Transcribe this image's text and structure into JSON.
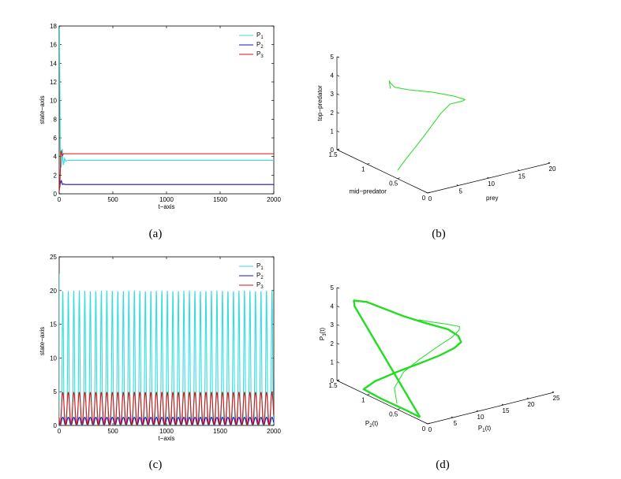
{
  "captions": {
    "a": "(a)",
    "b": "(b)",
    "c": "(c)",
    "d": "(d)"
  },
  "colors": {
    "cyan": "#33dddd",
    "blue": "#1010cc",
    "red": "#dd1111",
    "green": "#22dd22"
  },
  "chart_data": [
    {
      "id": "a",
      "type": "line",
      "xlabel": "t−axis",
      "ylabel": "state−axis",
      "xlim": [
        0,
        2000
      ],
      "ylim": [
        0,
        18
      ],
      "xticks": [
        0,
        500,
        1000,
        1500,
        2000
      ],
      "yticks": [
        0,
        2,
        4,
        6,
        8,
        10,
        12,
        14,
        16,
        18
      ],
      "legend": "top-right",
      "series": [
        {
          "name": "P1",
          "label": "P",
          "sub": "1",
          "color": "cyan",
          "x": [
            0,
            3,
            6,
            10,
            14,
            18,
            22,
            26,
            30,
            35,
            40,
            50,
            60,
            80,
            2000
          ],
          "y": [
            17.8,
            17.8,
            12.0,
            5.0,
            3.0,
            2.8,
            3.2,
            4.5,
            4.8,
            3.6,
            3.1,
            3.8,
            3.5,
            3.6,
            3.6
          ]
        },
        {
          "name": "P2",
          "label": "P",
          "sub": "2",
          "color": "blue",
          "x": [
            0,
            5,
            10,
            15,
            20,
            25,
            30,
            40,
            60,
            2000
          ],
          "y": [
            0.4,
            0.7,
            1.1,
            1.3,
            1.4,
            1.2,
            1.0,
            1.05,
            1.0,
            1.0
          ]
        },
        {
          "name": "P3",
          "label": "P",
          "sub": "3",
          "color": "red",
          "x": [
            0,
            5,
            10,
            15,
            20,
            25,
            30,
            40,
            60,
            2000
          ],
          "y": [
            0.2,
            0.8,
            2.2,
            4.5,
            4.6,
            4.2,
            4.1,
            4.3,
            4.3,
            4.3
          ]
        }
      ]
    },
    {
      "id": "b",
      "type": "line3d",
      "xlabel": "prey",
      "ylabel": "mid−predator",
      "zlabel": "top−predator",
      "xlim": [
        0,
        20
      ],
      "ylim": [
        0,
        1.5
      ],
      "zlim": [
        0,
        5
      ],
      "xticks": [
        0,
        5,
        10,
        15,
        20
      ],
      "yticks": [
        0,
        0.5,
        1,
        1.5
      ],
      "zticks": [
        0,
        1,
        2,
        3,
        4,
        5
      ],
      "series": [
        {
          "color": "green",
          "x": [
            1,
            4,
            8,
            12,
            15,
            17.5,
            18,
            17,
            14.5,
            11,
            7,
            4.6,
            3.8,
            3.6,
            3.7,
            3.8
          ],
          "y": [
            0.6,
            0.75,
            0.95,
            1.15,
            1.3,
            1.4,
            1.25,
            1.1,
            1.02,
            1.02,
            1.02,
            1.01,
            1.0,
            1.0,
            1.0,
            1.0
          ],
          "z": [
            0.2,
            0.4,
            0.6,
            0.85,
            1.05,
            1.2,
            1.55,
            1.95,
            2.45,
            2.95,
            3.4,
            3.75,
            4.05,
            4.2,
            3.95,
            3.75
          ]
        }
      ]
    },
    {
      "id": "c",
      "type": "line",
      "xlabel": "t−axis",
      "ylabel": "state−axis",
      "xlim": [
        0,
        2000
      ],
      "ylim": [
        0,
        25
      ],
      "xticks": [
        0,
        500,
        1000,
        1500,
        2000
      ],
      "yticks": [
        0,
        5,
        10,
        15,
        20,
        25
      ],
      "legend": "top-right",
      "period": 51.3,
      "cycles": 39,
      "series": [
        {
          "name": "P1",
          "label": "P",
          "sub": "1",
          "color": "cyan",
          "initial": 22.5,
          "min": 0.1,
          "max": 20.0
        },
        {
          "name": "P2",
          "label": "P",
          "sub": "2",
          "color": "blue",
          "min": 0.1,
          "max": 1.2
        },
        {
          "name": "P3",
          "label": "P",
          "sub": "3",
          "color": "red",
          "min": 0.1,
          "max": 4.9
        }
      ]
    },
    {
      "id": "d",
      "type": "line3d",
      "xlabel": "P1(t)",
      "ylabel": "P2(t)",
      "zlabel": "P3(t)",
      "xlabel_main": "P",
      "xlabel_sub": "1",
      "xlabel_tail": "(t)",
      "ylabel_main": "P",
      "ylabel_sub": "2",
      "ylabel_tail": "(t)",
      "zlabel_main": "P",
      "zlabel_sub": "3",
      "zlabel_tail": "(t)",
      "xlim": [
        0,
        25
      ],
      "ylim": [
        0,
        1.5
      ],
      "zlim": [
        0,
        5
      ],
      "xticks": [
        0,
        5,
        10,
        15,
        20,
        25
      ],
      "yticks": [
        0,
        0.5,
        1,
        1.5
      ],
      "zticks": [
        0,
        1,
        2,
        3,
        4,
        5
      ],
      "series": [
        {
          "color": "green",
          "role": "transient",
          "x": [
            0.5,
            3,
            7,
            11,
            15,
            18.5,
            20,
            19.5,
            17,
            14,
            12
          ],
          "y": [
            0.55,
            0.8,
            0.98,
            1.05,
            1.1,
            1.15,
            1.15,
            1.1,
            1.1,
            1.12,
            1.15
          ],
          "z": [
            0.2,
            0.5,
            0.8,
            1.1,
            1.4,
            1.6,
            1.9,
            2.2,
            2.5,
            2.8,
            3.0
          ]
        },
        {
          "color": "green",
          "role": "limit-cycle",
          "x": [
            0.3,
            0.4,
            0.3,
            0.5,
            3,
            7,
            11,
            14.5,
            17,
            18,
            17.8,
            16.5,
            13,
            9.5,
            6.5,
            3.5,
            1.2,
            0.5,
            0.3
          ],
          "y": [
            0.15,
            0.4,
            0.8,
            1.1,
            1.12,
            1.1,
            1.06,
            1.02,
            0.98,
            0.95,
            0.98,
            1.04,
            1.12,
            1.18,
            1.24,
            1.3,
            1.32,
            1.25,
            0.15
          ],
          "z": [
            0.1,
            0.1,
            0.1,
            0.12,
            0.35,
            0.6,
            0.85,
            1.1,
            1.4,
            1.7,
            2.0,
            2.35,
            2.8,
            3.3,
            3.8,
            4.3,
            4.5,
            4.35,
            0.1
          ]
        }
      ]
    }
  ]
}
